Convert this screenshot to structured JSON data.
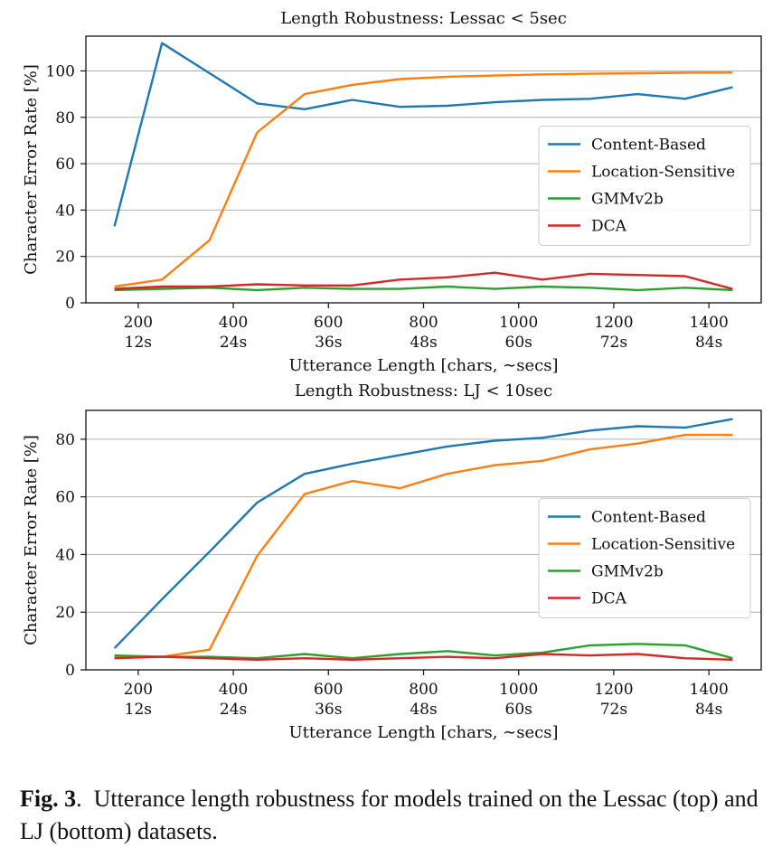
{
  "chart_data": [
    {
      "type": "line",
      "title": "Length Robustness: Lessac < 5sec",
      "xlabel": "Utterance Length [chars, ∼secs]",
      "ylabel": "Character Error Rate [%]",
      "xlim": [
        90,
        1510
      ],
      "ylim": [
        0,
        115
      ],
      "yticks": [
        0,
        20,
        40,
        60,
        80,
        100
      ],
      "xticks": [
        {
          "value": 200,
          "chars": "200",
          "secs": "12s"
        },
        {
          "value": 400,
          "chars": "400",
          "secs": "24s"
        },
        {
          "value": 600,
          "chars": "600",
          "secs": "36s"
        },
        {
          "value": 800,
          "chars": "800",
          "secs": "48s"
        },
        {
          "value": 1000,
          "chars": "1000",
          "secs": "60s"
        },
        {
          "value": 1200,
          "chars": "1200",
          "secs": "72s"
        },
        {
          "value": 1400,
          "chars": "1400",
          "secs": "84s"
        }
      ],
      "grid": "horizontal",
      "legend_position": "center-right",
      "x": [
        150,
        250,
        350,
        450,
        550,
        650,
        750,
        850,
        950,
        1050,
        1150,
        1250,
        1350,
        1450
      ],
      "series": [
        {
          "name": "Content-Based",
          "color": "#1f77b4",
          "values": [
            33,
            112,
            99,
            86,
            83.5,
            87.5,
            84.5,
            85,
            86.5,
            87.5,
            88,
            90,
            88,
            93
          ]
        },
        {
          "name": "Location-Sensitive",
          "color": "#ff7f0e",
          "values": [
            7,
            10,
            27,
            73.5,
            90,
            94,
            96.5,
            97.5,
            98,
            98.5,
            98.8,
            99,
            99.2,
            99.3
          ]
        },
        {
          "name": "GMMv2b",
          "color": "#2ca02c",
          "values": [
            5.5,
            6,
            6.5,
            5.5,
            6.5,
            6,
            6,
            7,
            6,
            7,
            6.5,
            5.5,
            6.5,
            5.5
          ]
        },
        {
          "name": "DCA",
          "color": "#d62728",
          "values": [
            6,
            7,
            7,
            8,
            7.5,
            7.5,
            10,
            11,
            13,
            10,
            12.5,
            12,
            11.5,
            6
          ]
        }
      ]
    },
    {
      "type": "line",
      "title": "Length Robustness: LJ < 10sec",
      "xlabel": "Utterance Length [chars, ∼secs]",
      "ylabel": "Character Error Rate [%]",
      "xlim": [
        90,
        1510
      ],
      "ylim": [
        0,
        90
      ],
      "yticks": [
        0,
        20,
        40,
        60,
        80
      ],
      "xticks": [
        {
          "value": 200,
          "chars": "200",
          "secs": "12s"
        },
        {
          "value": 400,
          "chars": "400",
          "secs": "24s"
        },
        {
          "value": 600,
          "chars": "600",
          "secs": "36s"
        },
        {
          "value": 800,
          "chars": "800",
          "secs": "48s"
        },
        {
          "value": 1000,
          "chars": "1000",
          "secs": "60s"
        },
        {
          "value": 1200,
          "chars": "1200",
          "secs": "72s"
        },
        {
          "value": 1400,
          "chars": "1400",
          "secs": "84s"
        }
      ],
      "grid": "horizontal",
      "legend_position": "center-right",
      "x": [
        150,
        250,
        350,
        450,
        550,
        650,
        750,
        850,
        950,
        1050,
        1150,
        1250,
        1350,
        1450
      ],
      "series": [
        {
          "name": "Content-Based",
          "color": "#1f77b4",
          "values": [
            7.5,
            24.5,
            41,
            58,
            68,
            71.5,
            74.5,
            77.5,
            79.5,
            80.5,
            83,
            84.5,
            84,
            87
          ]
        },
        {
          "name": "Location-Sensitive",
          "color": "#ff7f0e",
          "values": [
            4.5,
            4.5,
            7,
            39.5,
            61,
            65.5,
            63,
            68,
            71,
            72.5,
            76.5,
            78.5,
            81.5,
            81.5
          ]
        },
        {
          "name": "GMMv2b",
          "color": "#2ca02c",
          "values": [
            5,
            4.5,
            4.5,
            4,
            5.5,
            4,
            5.5,
            6.5,
            5,
            6,
            8.5,
            9,
            8.5,
            4
          ]
        },
        {
          "name": "DCA",
          "color": "#d62728",
          "values": [
            4,
            4.5,
            4,
            3.5,
            4,
            3.5,
            4,
            4.5,
            4,
            5.5,
            5,
            5.5,
            4,
            3.5
          ]
        }
      ]
    }
  ],
  "caption": {
    "label": "Fig. 3",
    "text": "Utterance length robustness for models trained on the Lessac (top) and LJ (bottom) datasets."
  }
}
